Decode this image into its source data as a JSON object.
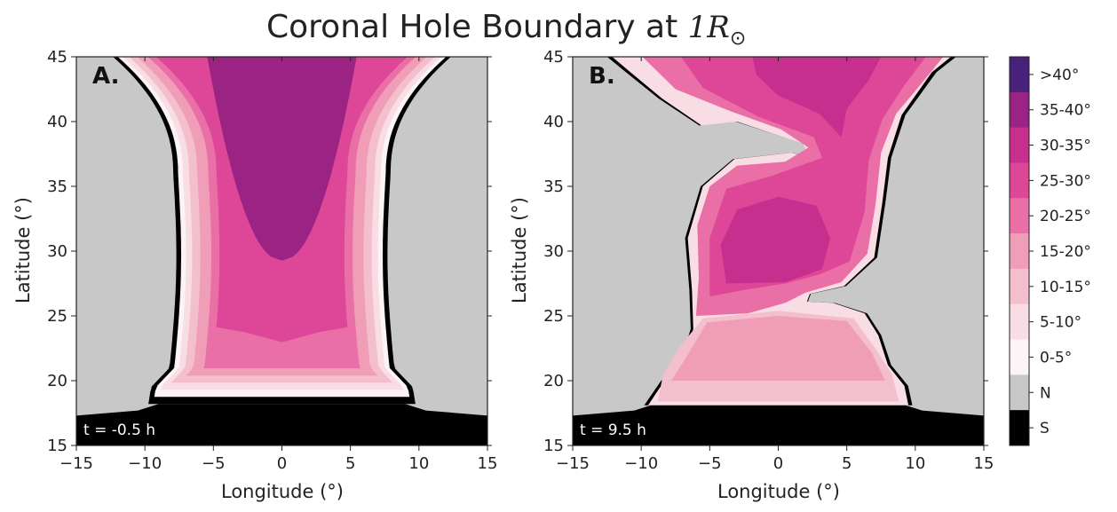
{
  "chart_data": {
    "type": "heatmap",
    "title_prefix": "Coronal Hole Boundary at ",
    "title_math": "1R",
    "title_sub": "⊙",
    "colors": {
      "background_N": "#c8c8c8",
      "S": "#000000",
      "boundary": "#000000",
      "bins": [
        "#fbf3f5",
        "#f8dde4",
        "#f4bfcd",
        "#f09eb8",
        "#ea6fa7",
        "#de4797",
        "#c62f8d",
        "#9a2384",
        "#48217a"
      ]
    },
    "panels": [
      {
        "letter": "A.",
        "time_label": "t = -0.5 h",
        "xlabel": "Longitude (°)",
        "ylabel": "Latitude (°)",
        "xlim": [
          -15,
          15
        ],
        "ylim": [
          15,
          45
        ],
        "xticks": [
          "−15",
          "−10",
          "−5",
          "0",
          "5",
          "10",
          "15"
        ],
        "yticks": [
          "15",
          "20",
          "25",
          "30",
          "35",
          "40",
          "45"
        ]
      },
      {
        "letter": "B.",
        "time_label": "t = 9.5 h",
        "xlabel": "Longitude (°)",
        "ylabel": "Latitude (°)",
        "xlim": [
          -15,
          15
        ],
        "ylim": [
          15,
          45
        ],
        "xticks": [
          "−15",
          "−10",
          "−5",
          "0",
          "5",
          "10",
          "15"
        ],
        "yticks": [
          "15",
          "20",
          "25",
          "30",
          "35",
          "40",
          "45"
        ]
      }
    ],
    "colorbar": {
      "labels": [
        ">40°",
        "35-40°",
        "30-35°",
        "25-30°",
        "20-25°",
        "15-20°",
        "10-15°",
        "5-10°",
        "0-5°",
        "N",
        "S"
      ],
      "colors": [
        "#48217a",
        "#9a2384",
        "#c62f8d",
        "#de4797",
        "#ea6fa7",
        "#f09eb8",
        "#f4bfcd",
        "#f8dde4",
        "#fbf3f5",
        "#c8c8c8",
        "#000000"
      ]
    }
  }
}
